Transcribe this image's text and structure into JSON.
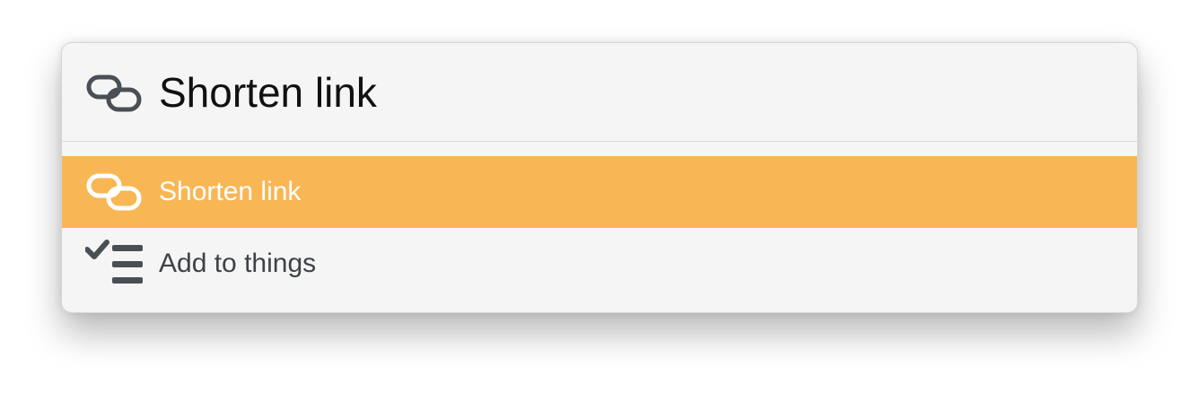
{
  "search": {
    "value": "Shorten link",
    "icon": "link-icon"
  },
  "results": [
    {
      "label": "Shorten link",
      "icon": "link-icon",
      "selected": true
    },
    {
      "label": "Add to things",
      "icon": "checklist-icon",
      "selected": false
    }
  ],
  "colors": {
    "selected_background": "#f9b655",
    "panel_background": "#f5f5f6",
    "icon_color": "#4a4f56",
    "selected_text": "#ffffff"
  }
}
